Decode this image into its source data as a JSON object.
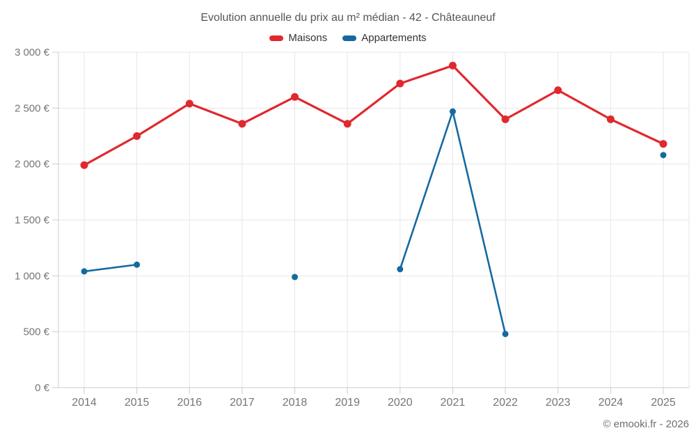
{
  "chart_data": {
    "type": "line",
    "title": "Evolution annuelle du prix au m² médian - 42 - Châteauneuf",
    "footer": "© emooki.fr - 2026",
    "categories": [
      "2014",
      "2015",
      "2016",
      "2017",
      "2018",
      "2019",
      "2020",
      "2021",
      "2022",
      "2023",
      "2024",
      "2025"
    ],
    "ylim": [
      0,
      3000
    ],
    "grid": true,
    "legend_position": "top",
    "y_ticks": [
      {
        "value": 0,
        "label": "0 €"
      },
      {
        "value": 500,
        "label": "500 €"
      },
      {
        "value": 1000,
        "label": "1 000 €"
      },
      {
        "value": 1500,
        "label": "1 500 €"
      },
      {
        "value": 2000,
        "label": "2 000 €"
      },
      {
        "value": 2500,
        "label": "2 500 €"
      },
      {
        "value": 3000,
        "label": "3 000 €"
      }
    ],
    "series": [
      {
        "name": "Maisons",
        "color": "#e0282e",
        "values": [
          1990,
          2250,
          2540,
          2360,
          2600,
          2360,
          2720,
          2880,
          2400,
          2660,
          2400,
          2180
        ]
      },
      {
        "name": "Appartements",
        "color": "#1569a0",
        "values": [
          1040,
          1100,
          null,
          null,
          990,
          null,
          1060,
          2470,
          480,
          null,
          null,
          2080
        ]
      }
    ],
    "colors": {
      "grid_line": "#e6e6e6",
      "axis_line": "#cccccc",
      "tick_label": "#757575"
    }
  }
}
